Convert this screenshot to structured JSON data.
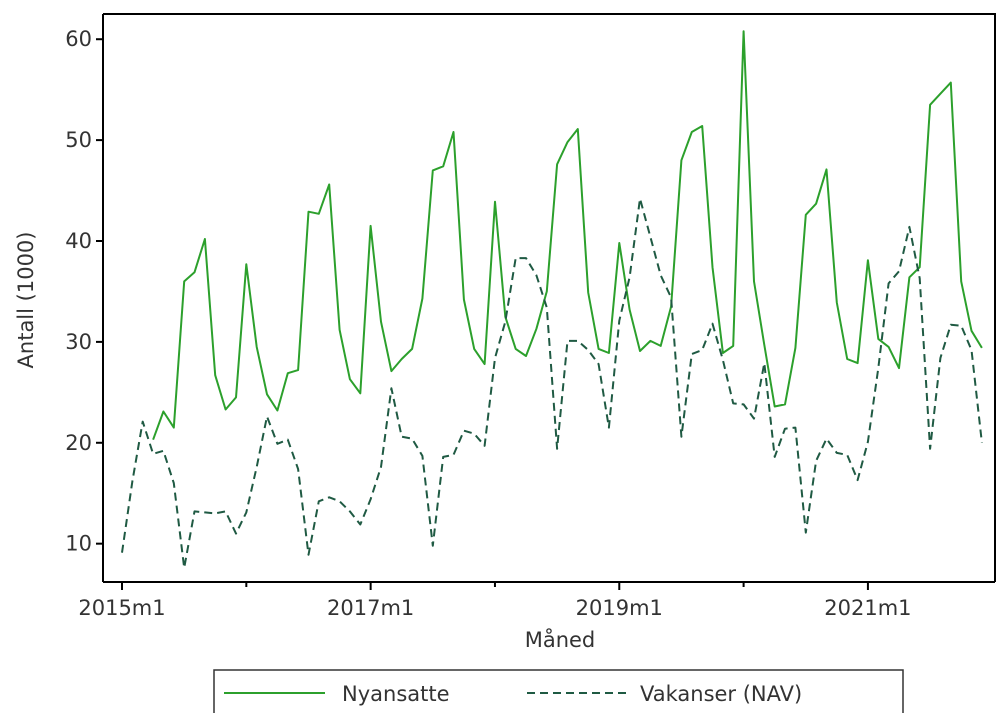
{
  "chart_data": {
    "type": "line",
    "title": "",
    "xlabel": "Måned",
    "ylabel": "Antall (1000)",
    "xlim": [
      0,
      83
    ],
    "ylim": [
      6.2,
      62.5
    ],
    "y_ticks": [
      10,
      20,
      30,
      40,
      50,
      60
    ],
    "x_ticks": [
      {
        "index": 0,
        "label": "2015m1"
      },
      {
        "index": 24,
        "label": "2017m1"
      },
      {
        "index": 48,
        "label": "2019m1"
      },
      {
        "index": 72,
        "label": "2021m1"
      }
    ],
    "x_minor_ticks": [
      12,
      36,
      60
    ],
    "grid": false,
    "legend_position": "bottom",
    "series": [
      {
        "name": "Nyansatte",
        "style": "solid",
        "color": "#2ca02c",
        "start_index": 3,
        "values": [
          20.3,
          23.1,
          21.5,
          36.0,
          36.9,
          40.2,
          26.7,
          23.3,
          24.5,
          37.7,
          29.5,
          24.8,
          23.2,
          26.9,
          27.2,
          42.9,
          42.7,
          45.6,
          31.2,
          26.3,
          24.9,
          41.5,
          32.0,
          27.1,
          28.3,
          29.3,
          34.3,
          47.0,
          47.4,
          50.8,
          34.2,
          29.3,
          27.8,
          43.9,
          32.5,
          29.3,
          28.6,
          31.3,
          35.0,
          47.6,
          49.8,
          51.1,
          34.9,
          29.3,
          28.9,
          39.8,
          33.2,
          29.1,
          30.1,
          29.6,
          33.5,
          48.0,
          50.8,
          51.4,
          37.4,
          28.9,
          29.6,
          60.8,
          36.0,
          29.7,
          23.6,
          23.8,
          29.4,
          42.6,
          43.7,
          47.1,
          33.9,
          28.3,
          27.9,
          38.1,
          30.3,
          29.5,
          27.4,
          36.4,
          37.4,
          53.5,
          54.6,
          55.7,
          36.0,
          31.1,
          29.4
        ]
      },
      {
        "name": "Vakanser (NAV)",
        "style": "dashed",
        "color": "#1f5a43",
        "start_index": 0,
        "values": [
          9.1,
          16.2,
          22.1,
          18.9,
          19.2,
          16.0,
          7.6,
          13.2,
          13.1,
          13.0,
          13.2,
          11.0,
          13.1,
          17.6,
          22.6,
          19.9,
          20.3,
          17.4,
          8.9,
          14.2,
          14.6,
          14.2,
          13.2,
          11.9,
          14.4,
          17.6,
          25.4,
          20.6,
          20.4,
          18.7,
          9.8,
          18.6,
          18.8,
          21.2,
          20.9,
          19.7,
          28.4,
          32.0,
          38.3,
          38.3,
          36.6,
          33.4,
          19.4,
          30.1,
          30.1,
          29.2,
          27.8,
          21.5,
          32.1,
          36.4,
          44.2,
          40.4,
          36.6,
          34.4,
          20.6,
          28.8,
          29.2,
          31.8,
          28.2,
          23.9,
          23.8,
          22.4,
          27.9,
          18.6,
          21.4,
          21.5,
          11.1,
          18.2,
          20.4,
          19.0,
          18.8,
          16.3,
          20.1,
          27.4,
          35.8,
          37.0,
          41.4,
          36.3,
          19.4,
          28.4,
          31.7,
          31.6,
          29.2,
          20.0
        ]
      }
    ]
  }
}
